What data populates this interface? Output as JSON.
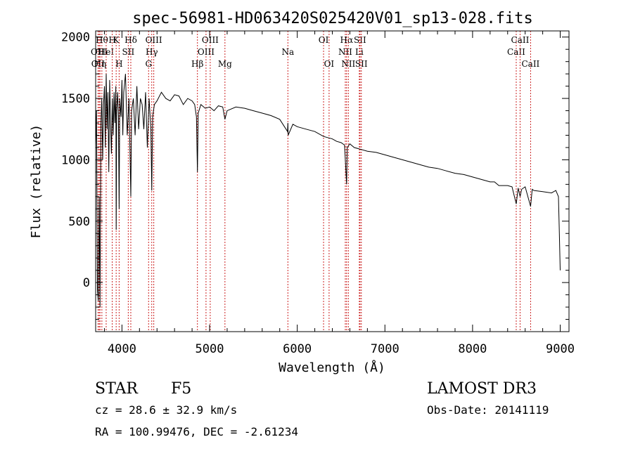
{
  "chart_data": {
    "type": "line",
    "title": "spec-56981-HD063420S025420V01_sp13-028.fits",
    "xlabel": "Wavelength (Å)",
    "ylabel": "Flux (relative)",
    "xlim": [
      3700,
      9100
    ],
    "ylim": [
      -400,
      2050
    ],
    "xticks": [
      4000,
      5000,
      6000,
      7000,
      8000,
      9000
    ],
    "yticks": [
      0,
      500,
      1000,
      1500,
      2000
    ],
    "spectrum": {
      "x": [
        3700,
        3710,
        3720,
        3730,
        3740,
        3750,
        3760,
        3770,
        3780,
        3790,
        3800,
        3810,
        3820,
        3830,
        3840,
        3850,
        3860,
        3870,
        3880,
        3890,
        3900,
        3910,
        3920,
        3930,
        3934,
        3940,
        3950,
        3960,
        3968,
        3975,
        3990,
        4000,
        4010,
        4020,
        4040,
        4060,
        4080,
        4101,
        4110,
        4130,
        4150,
        4170,
        4190,
        4210,
        4230,
        4250,
        4270,
        4290,
        4310,
        4330,
        4340,
        4350,
        4370,
        4400,
        4450,
        4500,
        4550,
        4600,
        4650,
        4700,
        4750,
        4800,
        4830,
        4850,
        4861,
        4870,
        4900,
        4950,
        5000,
        5050,
        5100,
        5150,
        5175,
        5200,
        5300,
        5400,
        5500,
        5600,
        5700,
        5800,
        5889,
        5893,
        5896,
        5950,
        6000,
        6100,
        6200,
        6300,
        6400,
        6450,
        6500,
        6540,
        6563,
        6570,
        6600,
        6650,
        6700,
        6800,
        6900,
        7000,
        7100,
        7200,
        7300,
        7400,
        7500,
        7600,
        7700,
        7800,
        7900,
        8000,
        8100,
        8200,
        8250,
        8300,
        8400,
        8450,
        8498,
        8520,
        8542,
        8560,
        8600,
        8662,
        8680,
        8700,
        8800,
        8900,
        8950,
        8980,
        8990,
        9000
      ],
      "y": [
        1100,
        1400,
        -50,
        -150,
        700,
        -200,
        1300,
        1500,
        1000,
        1450,
        1600,
        1100,
        1700,
        1250,
        1550,
        900,
        1650,
        1300,
        1050,
        1500,
        1200,
        1550,
        1300,
        1600,
        430,
        1400,
        1550,
        1350,
        600,
        1500,
        1350,
        1650,
        1200,
        1550,
        1700,
        1200,
        1500,
        700,
        1400,
        1500,
        1200,
        1600,
        1250,
        1500,
        1450,
        1250,
        1550,
        1100,
        1500,
        1250,
        750,
        1350,
        1450,
        1480,
        1550,
        1500,
        1480,
        1530,
        1520,
        1450,
        1500,
        1480,
        1450,
        1350,
        900,
        1380,
        1450,
        1420,
        1430,
        1400,
        1440,
        1430,
        1330,
        1400,
        1430,
        1420,
        1400,
        1380,
        1360,
        1330,
        1230,
        1300,
        1200,
        1290,
        1270,
        1250,
        1230,
        1190,
        1170,
        1150,
        1140,
        1120,
        800,
        1100,
        1130,
        1100,
        1090,
        1070,
        1060,
        1040,
        1020,
        1000,
        980,
        960,
        940,
        930,
        910,
        890,
        880,
        860,
        840,
        820,
        820,
        790,
        790,
        780,
        640,
        770,
        700,
        760,
        780,
        620,
        760,
        750,
        740,
        730,
        750,
        700,
        400,
        100
      ]
    },
    "emission_lines": [
      {
        "name": "OII",
        "x": 3727,
        "row": 2
      },
      {
        "name": "Hη",
        "x": 3750,
        "row": 2
      },
      {
        "name": "Hθ",
        "x": 3771,
        "row": 0
      },
      {
        "name": "OIII",
        "x": 3740,
        "row": 1
      },
      {
        "name": "HeI",
        "x": 3820,
        "row": 1
      },
      {
        "name": "H",
        "x": 3889,
        "row": 0
      },
      {
        "name": "K",
        "x": 3934,
        "row": 0
      },
      {
        "name": "H",
        "x": 3968,
        "row": 2
      },
      {
        "name": "SII",
        "x": 4072,
        "row": 1
      },
      {
        "name": "Hδ",
        "x": 4101,
        "row": 0
      },
      {
        "name": "G",
        "x": 4304,
        "row": 2
      },
      {
        "name": "Hγ",
        "x": 4340,
        "row": 1
      },
      {
        "name": "OIII",
        "x": 4363,
        "row": 0
      },
      {
        "name": "Hβ",
        "x": 4861,
        "row": 2
      },
      {
        "name": "OIII",
        "x": 4959,
        "row": 1
      },
      {
        "name": "OIII",
        "x": 5007,
        "row": 0
      },
      {
        "name": "Mg",
        "x": 5175,
        "row": 2
      },
      {
        "name": "Na",
        "x": 5893,
        "row": 1
      },
      {
        "name": "OI",
        "x": 6300,
        "row": 0
      },
      {
        "name": "OI",
        "x": 6363,
        "row": 2
      },
      {
        "name": "NII",
        "x": 6548,
        "row": 1
      },
      {
        "name": "Hα",
        "x": 6563,
        "row": 0
      },
      {
        "name": "NII",
        "x": 6583,
        "row": 2
      },
      {
        "name": "SII",
        "x": 6716,
        "row": 0
      },
      {
        "name": "Li",
        "x": 6708,
        "row": 1
      },
      {
        "name": "SII",
        "x": 6731,
        "row": 2
      },
      {
        "name": "CaII",
        "x": 8498,
        "row": 1
      },
      {
        "name": "CaII",
        "x": 8542,
        "row": 0
      },
      {
        "name": "CaII",
        "x": 8662,
        "row": 2
      }
    ]
  },
  "info": {
    "object_class": "STAR",
    "subclass": "F5",
    "survey": "LAMOST DR3",
    "cz": "cz = 28.6 ± 32.9 km/s",
    "obs_date": "Obs-Date: 20141119",
    "radec": "RA = 100.99476, DEC =  -2.61234"
  },
  "colors": {
    "axis": "#000000",
    "spectrum": "#000000",
    "line_marker": "#cc2222",
    "background": "#ffffff"
  }
}
